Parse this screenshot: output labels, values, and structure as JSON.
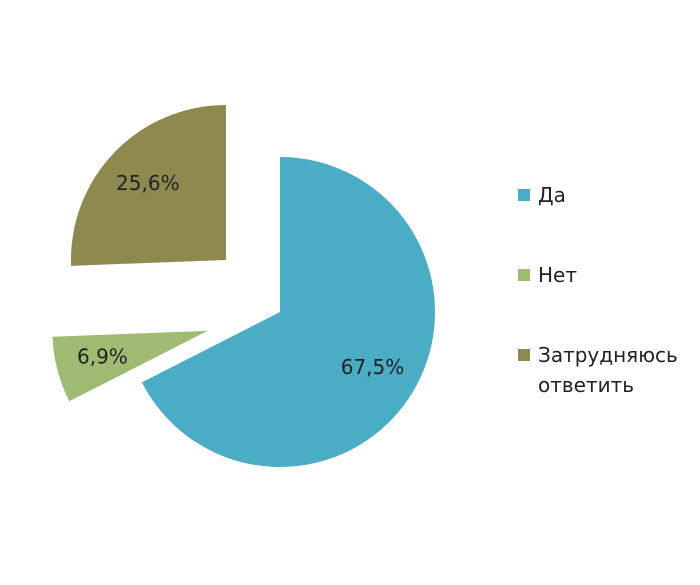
{
  "chart_data": {
    "type": "pie",
    "categories": [
      "Да",
      "Нет",
      "Затрудняюсь ответить"
    ],
    "values": [
      67.5,
      6.9,
      25.6
    ],
    "value_labels": [
      "67,5%",
      "6,9%",
      "25,6%"
    ],
    "colors": [
      "#4bacc6",
      "#9fba72",
      "#8e8a4f"
    ],
    "legend": "right"
  }
}
